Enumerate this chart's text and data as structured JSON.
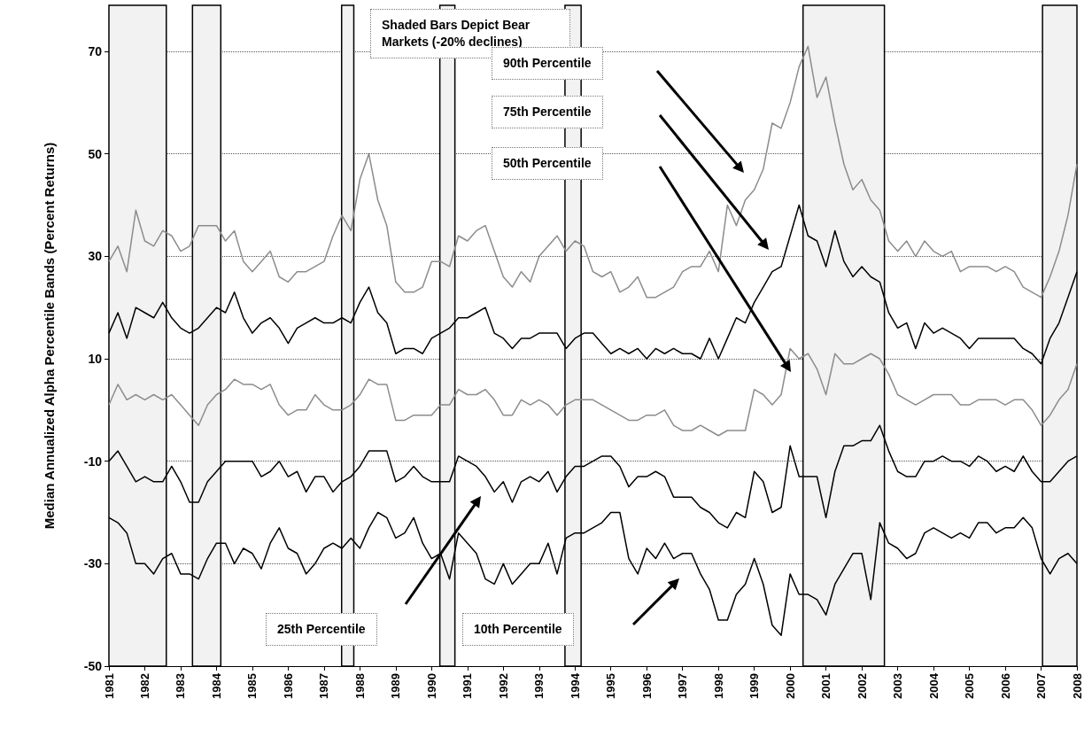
{
  "chart_data": {
    "type": "line",
    "ylabel": "Median Annualized Alpha Percentile Bands (Percent Returns)",
    "x": [
      1981,
      1981.25,
      1981.5,
      1981.75,
      1982,
      1982.25,
      1982.5,
      1982.75,
      1983,
      1983.25,
      1983.5,
      1983.75,
      1984,
      1984.25,
      1984.5,
      1984.75,
      1985,
      1985.25,
      1985.5,
      1985.75,
      1986,
      1986.25,
      1986.5,
      1986.75,
      1987,
      1987.25,
      1987.5,
      1987.75,
      1988,
      1988.25,
      1988.5,
      1988.75,
      1989,
      1989.25,
      1989.5,
      1989.75,
      1990,
      1990.25,
      1990.5,
      1990.75,
      1991,
      1991.25,
      1991.5,
      1991.75,
      1992,
      1992.25,
      1992.5,
      1992.75,
      1993,
      1993.25,
      1993.5,
      1993.75,
      1994,
      1994.25,
      1994.5,
      1994.75,
      1995,
      1995.25,
      1995.5,
      1995.75,
      1996,
      1996.25,
      1996.5,
      1996.75,
      1997,
      1997.25,
      1997.5,
      1997.75,
      1998,
      1998.25,
      1998.5,
      1998.75,
      1999,
      1999.25,
      1999.5,
      1999.75,
      2000,
      2000.25,
      2000.5,
      2000.75,
      2001,
      2001.25,
      2001.5,
      2001.75,
      2002,
      2002.25,
      2002.5,
      2002.75,
      2003,
      2003.25,
      2003.5,
      2003.75,
      2004,
      2004.25,
      2004.5,
      2004.75,
      2005,
      2005.25,
      2005.5,
      2005.75,
      2006,
      2006.25,
      2006.5,
      2006.75,
      2007,
      2007.25,
      2007.5,
      2007.75,
      2008
    ],
    "series": [
      {
        "color": "#8c8c8c",
        "values": [
          29,
          32,
          27,
          39,
          33,
          32,
          35,
          34,
          31,
          32,
          36,
          36,
          36,
          33,
          35,
          29,
          27,
          29,
          31,
          26,
          25,
          27,
          27,
          28,
          29,
          34,
          38,
          35,
          45,
          50,
          41,
          36,
          25,
          23,
          23,
          24,
          29,
          29,
          28,
          34,
          33,
          35,
          36,
          31,
          26,
          24,
          27,
          25,
          30,
          32,
          34,
          31,
          33,
          32,
          27,
          26,
          27,
          23,
          24,
          26,
          22,
          22,
          23,
          24,
          27,
          28,
          28,
          31,
          27,
          40,
          36,
          41,
          43,
          47,
          56,
          55,
          60,
          67,
          71,
          61,
          65,
          56,
          48,
          43,
          45,
          41,
          39,
          33,
          31,
          33,
          30,
          33,
          31,
          30,
          31,
          27,
          28,
          28,
          28,
          27,
          28,
          27,
          24,
          23,
          22,
          26,
          31,
          38,
          48
        ]
      },
      {
        "color": "#000000",
        "values": [
          15,
          19,
          14,
          20,
          19,
          18,
          21,
          18,
          16,
          15,
          16,
          18,
          20,
          19,
          23,
          18,
          15,
          17,
          18,
          16,
          13,
          16,
          17,
          18,
          17,
          17,
          18,
          17,
          21,
          24,
          19,
          17,
          11,
          12,
          12,
          11,
          14,
          15,
          16,
          18,
          18,
          19,
          20,
          15,
          14,
          12,
          14,
          14,
          15,
          15,
          15,
          12,
          14,
          15,
          15,
          13,
          11,
          12,
          11,
          12,
          10,
          12,
          11,
          12,
          11,
          11,
          10,
          14,
          10,
          14,
          18,
          17,
          21,
          24,
          27,
          28,
          34,
          40,
          34,
          33,
          28,
          35,
          29,
          26,
          28,
          26,
          25,
          19,
          16,
          17,
          12,
          17,
          15,
          16,
          15,
          14,
          12,
          14,
          14,
          14,
          14,
          14,
          12,
          11,
          9,
          14,
          17,
          22,
          27
        ]
      },
      {
        "color": "#8c8c8c",
        "values": [
          1,
          5,
          2,
          3,
          2,
          3,
          2,
          3,
          1,
          -1,
          -3,
          1,
          3,
          4,
          6,
          5,
          5,
          4,
          5,
          1,
          -1,
          0,
          0,
          3,
          1,
          0,
          0,
          1,
          3,
          6,
          5,
          5,
          -2,
          -2,
          -1,
          -1,
          -1,
          1,
          1,
          4,
          3,
          3,
          4,
          2,
          -1,
          -1,
          2,
          1,
          2,
          1,
          -1,
          1,
          2,
          2,
          2,
          1,
          0,
          -1,
          -2,
          -2,
          -1,
          -1,
          0,
          -3,
          -4,
          -4,
          -3,
          -4,
          -5,
          -4,
          -4,
          -4,
          4,
          3,
          1,
          3,
          12,
          10,
          11,
          8,
          3,
          11,
          9,
          9,
          10,
          11,
          10,
          7,
          3,
          2,
          1,
          2,
          3,
          3,
          3,
          1,
          1,
          2,
          2,
          2,
          1,
          2,
          2,
          0,
          -3,
          -1,
          2,
          4,
          9
        ]
      },
      {
        "color": "#000000",
        "values": [
          -10,
          -8,
          -11,
          -14,
          -13,
          -14,
          -14,
          -11,
          -14,
          -18,
          -18,
          -14,
          -12,
          -10,
          -10,
          -10,
          -10,
          -13,
          -12,
          -10,
          -13,
          -12,
          -16,
          -13,
          -13,
          -16,
          -14,
          -13,
          -11,
          -8,
          -8,
          -8,
          -14,
          -13,
          -11,
          -13,
          -14,
          -14,
          -14,
          -9,
          -10,
          -11,
          -13,
          -16,
          -14,
          -18,
          -14,
          -13,
          -14,
          -12,
          -16,
          -13,
          -11,
          -11,
          -10,
          -9,
          -9,
          -11,
          -15,
          -13,
          -13,
          -12,
          -13,
          -17,
          -17,
          -17,
          -19,
          -20,
          -22,
          -23,
          -20,
          -21,
          -12,
          -14,
          -20,
          -19,
          -7,
          -13,
          -13,
          -13,
          -21,
          -12,
          -7,
          -7,
          -6,
          -6,
          -3,
          -8,
          -12,
          -13,
          -13,
          -10,
          -10,
          -9,
          -10,
          -10,
          -11,
          -9,
          -10,
          -12,
          -11,
          -12,
          -9,
          -12,
          -14,
          -14,
          -12,
          -10,
          -9
        ]
      },
      {
        "color": "#000000",
        "values": [
          -21,
          -22,
          -24,
          -30,
          -30,
          -32,
          -29,
          -28,
          -32,
          -32,
          -33,
          -29,
          -26,
          -26,
          -30,
          -27,
          -28,
          -31,
          -26,
          -23,
          -27,
          -28,
          -32,
          -30,
          -27,
          -26,
          -27,
          -25,
          -27,
          -23,
          -20,
          -21,
          -25,
          -24,
          -21,
          -26,
          -29,
          -28,
          -33,
          -24,
          -26,
          -28,
          -33,
          -34,
          -30,
          -34,
          -32,
          -30,
          -30,
          -26,
          -32,
          -25,
          -24,
          -24,
          -23,
          -22,
          -20,
          -20,
          -29,
          -32,
          -27,
          -29,
          -26,
          -29,
          -28,
          -28,
          -32,
          -35,
          -41,
          -41,
          -36,
          -34,
          -29,
          -34,
          -42,
          -44,
          -32,
          -36,
          -36,
          -37,
          -40,
          -34,
          -31,
          -28,
          -28,
          -37,
          -22,
          -26,
          -27,
          -29,
          -28,
          -24,
          -23,
          -24,
          -25,
          -24,
          -25,
          -22,
          -22,
          -24,
          -23,
          -23,
          -21,
          -23,
          -29,
          -32,
          -29,
          -28,
          -30
        ]
      }
    ],
    "xlim": [
      1981,
      2008
    ],
    "xticks": [
      1981,
      1982,
      1983,
      1984,
      1985,
      1986,
      1987,
      1988,
      1989,
      1990,
      1991,
      1992,
      1993,
      1994,
      1995,
      1996,
      1997,
      1998,
      1999,
      2000,
      2001,
      2002,
      2003,
      2004,
      2005,
      2006,
      2007,
      2008
    ],
    "ylim": [
      -50,
      79
    ],
    "yticks": [
      -50,
      -30,
      -10,
      10,
      30,
      50,
      70
    ],
    "grid": "y",
    "bands": [
      {
        "axis": "x",
        "from": 1981,
        "to": 1982.6,
        "color": "#f2f2f2"
      },
      {
        "axis": "x",
        "from": 1983.33,
        "to": 1984.12,
        "color": "#f2f2f2"
      },
      {
        "axis": "x",
        "from": 1987.49,
        "to": 1987.83,
        "color": "#f2f2f2"
      },
      {
        "axis": "x",
        "from": 1990.23,
        "to": 1990.65,
        "color": "#f2f2f2"
      },
      {
        "axis": "x",
        "from": 1993.72,
        "to": 1994.17,
        "color": "#f2f2f2"
      },
      {
        "axis": "x",
        "from": 2000.36,
        "to": 2002.63,
        "color": "#f2f2f2"
      },
      {
        "axis": "x",
        "from": 2007.04,
        "to": 2008,
        "color": "#f2f2f2"
      }
    ],
    "annotations": [
      "Shaded Bars Depict Bear Markets (-20% declines)",
      "90th Percentile",
      "75th Percentile",
      "50th Percentile",
      "25th Percentile",
      "10th Percentile"
    ]
  }
}
